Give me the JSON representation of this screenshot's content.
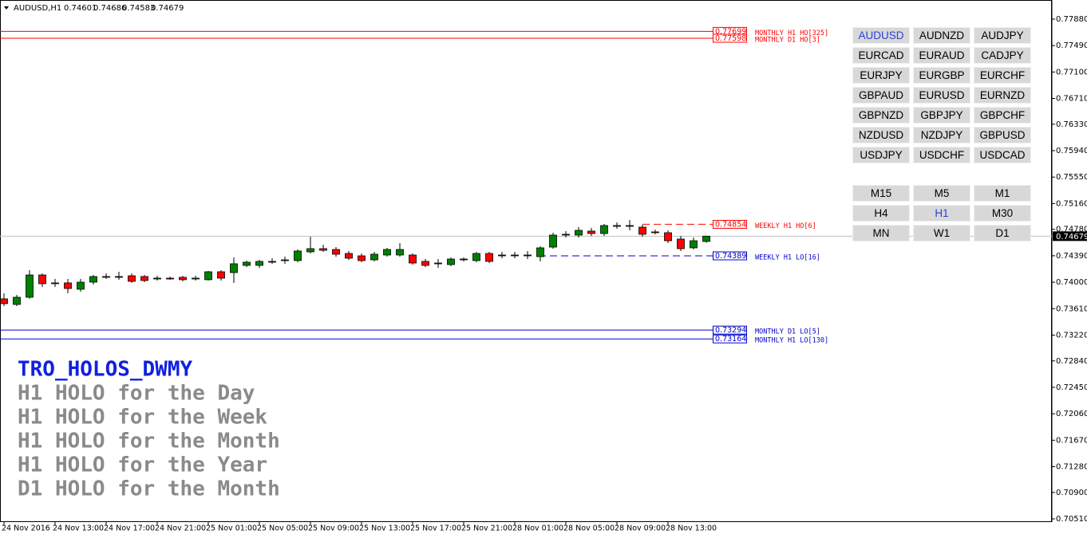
{
  "chart_data": {
    "type": "candlestick",
    "title": "AUDUSD,H1",
    "categories": [
      "24 Nov 2016",
      null,
      null,
      null,
      "24 Nov 13:00",
      null,
      null,
      null,
      "24 Nov 17:00",
      null,
      null,
      null,
      "24 Nov 21:00",
      null,
      null,
      null,
      "25 Nov 01:00",
      null,
      null,
      null,
      "25 Nov 05:00",
      null,
      null,
      null,
      "25 Nov 09:00",
      null,
      null,
      null,
      "25 Nov 13:00",
      null,
      null,
      null,
      "25 Nov 17:00",
      null,
      null,
      null,
      "25 Nov 21:00",
      null,
      null,
      null,
      "28 Nov 01:00",
      null,
      null,
      null,
      "28 Nov 05:00",
      null,
      null,
      null,
      "28 Nov 09:00",
      null,
      null,
      null,
      "28 Nov 13:00",
      null,
      null,
      null
    ],
    "open": [
      0.73755,
      0.73672,
      0.73778,
      0.74107,
      0.7399,
      0.7399,
      0.73896,
      0.74001,
      0.74084,
      0.74072,
      0.74095,
      0.74084,
      0.74048,
      0.7406,
      0.74072,
      0.74048,
      0.74037,
      0.74154,
      0.74142,
      0.74248,
      0.74248,
      0.74295,
      0.74319,
      0.74319,
      0.74448,
      0.74495,
      0.74483,
      0.74424,
      0.74389,
      0.7433,
      0.74401,
      0.74401,
      0.74401,
      0.74307,
      0.74283,
      0.7426,
      0.7433,
      0.74319,
      0.74424,
      0.74401,
      0.74389,
      0.74401,
      0.74377,
      0.74518,
      0.74695,
      0.74695,
      0.74754,
      0.74718,
      0.74836,
      0.74824,
      0.74812,
      0.74742,
      0.7473,
      0.74636,
      0.74507,
      0.74601
    ],
    "high": [
      0.73837,
      0.73813,
      0.74178,
      0.74131,
      0.74048,
      0.74048,
      0.74048,
      0.74107,
      0.74131,
      0.74154,
      0.74131,
      0.74107,
      0.74095,
      0.74084,
      0.74095,
      0.74095,
      0.74166,
      0.74178,
      0.74366,
      0.74319,
      0.7433,
      0.74354,
      0.74377,
      0.74483,
      0.74671,
      0.74554,
      0.74518,
      0.7446,
      0.74424,
      0.74448,
      0.74507,
      0.74577,
      0.74424,
      0.74342,
      0.74342,
      0.74366,
      0.74366,
      0.74448,
      0.74448,
      0.74448,
      0.74448,
      0.7446,
      0.7453,
      0.7473,
      0.74754,
      0.74812,
      0.748,
      0.74859,
      0.74883,
      0.74918,
      0.74847,
      0.74777,
      0.74765,
      0.74683,
      0.74659,
      0.74686
    ],
    "low": [
      0.73649,
      0.73649,
      0.73755,
      0.73931,
      0.73931,
      0.73837,
      0.7386,
      0.73966,
      0.74048,
      0.74037,
      0.7399,
      0.74001,
      0.74025,
      0.74037,
      0.74013,
      0.74025,
      0.74025,
      0.74025,
      0.7399,
      0.74225,
      0.74213,
      0.74272,
      0.74272,
      0.74295,
      0.74424,
      0.74448,
      0.74377,
      0.7433,
      0.74295,
      0.74307,
      0.74377,
      0.74377,
      0.7426,
      0.74225,
      0.74213,
      0.74236,
      0.74307,
      0.74295,
      0.74283,
      0.74354,
      0.74354,
      0.74342,
      0.74307,
      0.74495,
      0.74659,
      0.74659,
      0.74683,
      0.74683,
      0.74789,
      0.74765,
      0.74671,
      0.74707,
      0.74577,
      0.7446,
      0.74483,
      0.74583
    ],
    "close": [
      0.73684,
      0.73778,
      0.74107,
      0.73978,
      0.73978,
      0.73907,
      0.74001,
      0.74084,
      0.74072,
      0.74084,
      0.74013,
      0.74025,
      0.7406,
      0.74048,
      0.74037,
      0.7406,
      0.74154,
      0.7406,
      0.74272,
      0.74295,
      0.74307,
      0.74307,
      0.7433,
      0.7446,
      0.74495,
      0.74471,
      0.74413,
      0.74354,
      0.74319,
      0.74413,
      0.74483,
      0.74483,
      0.74283,
      0.74248,
      0.74272,
      0.74342,
      0.74342,
      0.74424,
      0.74307,
      0.74389,
      0.74401,
      0.74389,
      0.74507,
      0.74695,
      0.74707,
      0.74765,
      0.74718,
      0.74836,
      0.74824,
      0.74836,
      0.74707,
      0.7473,
      0.74612,
      0.74495,
      0.74612,
      0.74679
    ],
    "up_color": "#008000",
    "down_color": "#ff0000",
    "current_line_color": "#c0c0c0",
    "ylim": [
      0.70463,
      0.78162
    ],
    "yticks": [
      {
        "value": 0.7788,
        "label": "0.77880"
      },
      {
        "value": 0.7749,
        "label": "0.77490"
      },
      {
        "value": 0.771,
        "label": "0.77100"
      },
      {
        "value": 0.7671,
        "label": "0.76710"
      },
      {
        "value": 0.7633,
        "label": "0.76330"
      },
      {
        "value": 0.7594,
        "label": "0.75940"
      },
      {
        "value": 0.7555,
        "label": "0.75550"
      },
      {
        "value": 0.7516,
        "label": "0.75160"
      },
      {
        "value": 0.7478,
        "label": "0.74780"
      },
      {
        "value": 0.7439,
        "label": "0.74390"
      },
      {
        "value": 0.74,
        "label": "0.74000"
      },
      {
        "value": 0.7361,
        "label": "0.73610"
      },
      {
        "value": 0.7322,
        "label": "0.73220"
      },
      {
        "value": 0.7284,
        "label": "0.72840"
      },
      {
        "value": 0.7245,
        "label": "0.72450"
      },
      {
        "value": 0.7206,
        "label": "0.72060"
      },
      {
        "value": 0.7167,
        "label": "0.71670"
      },
      {
        "value": 0.7128,
        "label": "0.71280"
      },
      {
        "value": 0.709,
        "label": "0.70900"
      },
      {
        "value": 0.7051,
        "label": "0.70510"
      }
    ],
    "levels": [
      {
        "name": "MONTHLY H1 HO[325]",
        "value": 0.77699,
        "color": "#ff0000",
        "style": "solid"
      },
      {
        "name": "MONTHLY D1 HO[3]",
        "value": 0.77598,
        "color": "#ff0000",
        "style": "solid"
      },
      {
        "name": "WEEKLY H1 HO[6]",
        "value": 0.74854,
        "color": "#ff0000",
        "style": "dash"
      },
      {
        "name": "WEEKLY H1 LO[16]",
        "value": 0.74389,
        "color": "#0000cc",
        "style": "dash"
      },
      {
        "name": "MONTHLY D1 LO[5]",
        "value": 0.73294,
        "color": "#0000cc",
        "style": "solid"
      },
      {
        "name": "MONTHLY H1 LO[130]",
        "value": 0.73164,
        "color": "#0000cc",
        "style": "solid"
      }
    ]
  },
  "panel": {
    "title": "TRO_HOLOS_DWMY",
    "lines": [
      "H1 HOLO for the Day",
      "H1 HOLO for the Week",
      "H1 HOLO for the Month",
      "H1 HOLO for the Year",
      "D1 HOLO for the Month"
    ]
  },
  "symbol_buttons": [
    "AUDUSD",
    "AUDNZD",
    "AUDJPY",
    "EURCAD",
    "EURAUD",
    "CADJPY",
    "EURJPY",
    "EURGBP",
    "EURCHF",
    "GBPAUD",
    "EURUSD",
    "EURNZD",
    "GBPNZD",
    "GBPJPY",
    "GBPCHF",
    "NZDUSD",
    "NZDJPY",
    "GBPUSD",
    "USDJPY",
    "USDCHF",
    "USDCAD"
  ],
  "timeframe_buttons": [
    "M15",
    "M5",
    "M1",
    "H4",
    "H1",
    "M30",
    "MN",
    "W1",
    "D1"
  ],
  "active_symbol": "AUDUSD",
  "active_timeframe": "H1"
}
